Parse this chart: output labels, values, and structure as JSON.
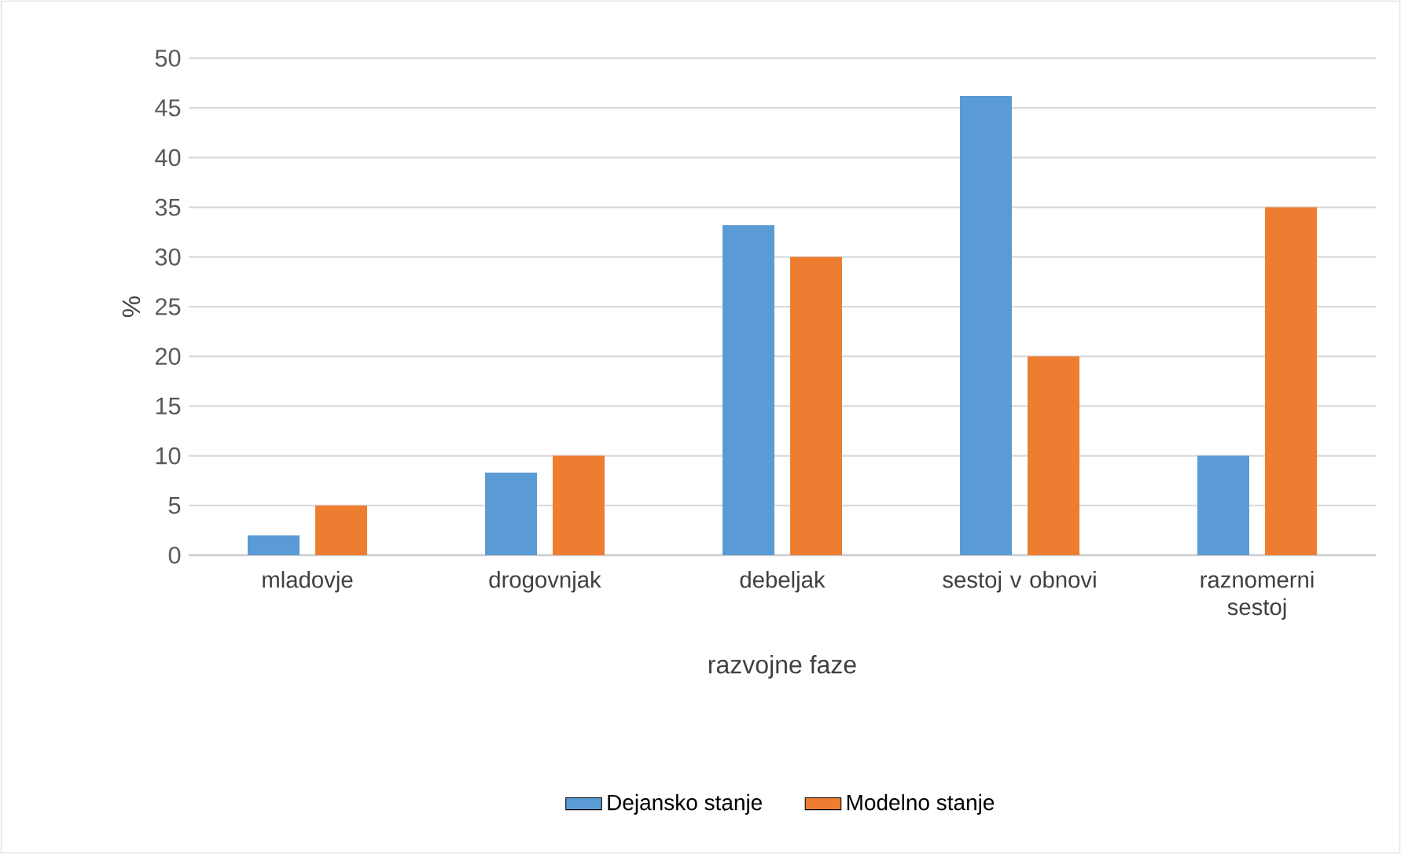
{
  "chart_data": {
    "type": "bar",
    "xlabel": "razvojne faze",
    "ylabel": "%",
    "categories": [
      "mladovje",
      "drogovnjak",
      "debeljak",
      "sestoj v obnovi",
      "raznomerni sestoj"
    ],
    "series": [
      {
        "name": "Dejansko stanje",
        "color": "#5b9bd5",
        "values": [
          2,
          8.3,
          33.2,
          46.2,
          10
        ]
      },
      {
        "name": "Modelno stanje",
        "color": "#ed7d31",
        "values": [
          5,
          10,
          30,
          20,
          35
        ]
      }
    ],
    "ylim": [
      0,
      50
    ],
    "yticks": [
      0,
      5,
      10,
      15,
      20,
      25,
      30,
      35,
      40,
      45,
      50
    ],
    "grid": "y",
    "legend": "bottom"
  }
}
